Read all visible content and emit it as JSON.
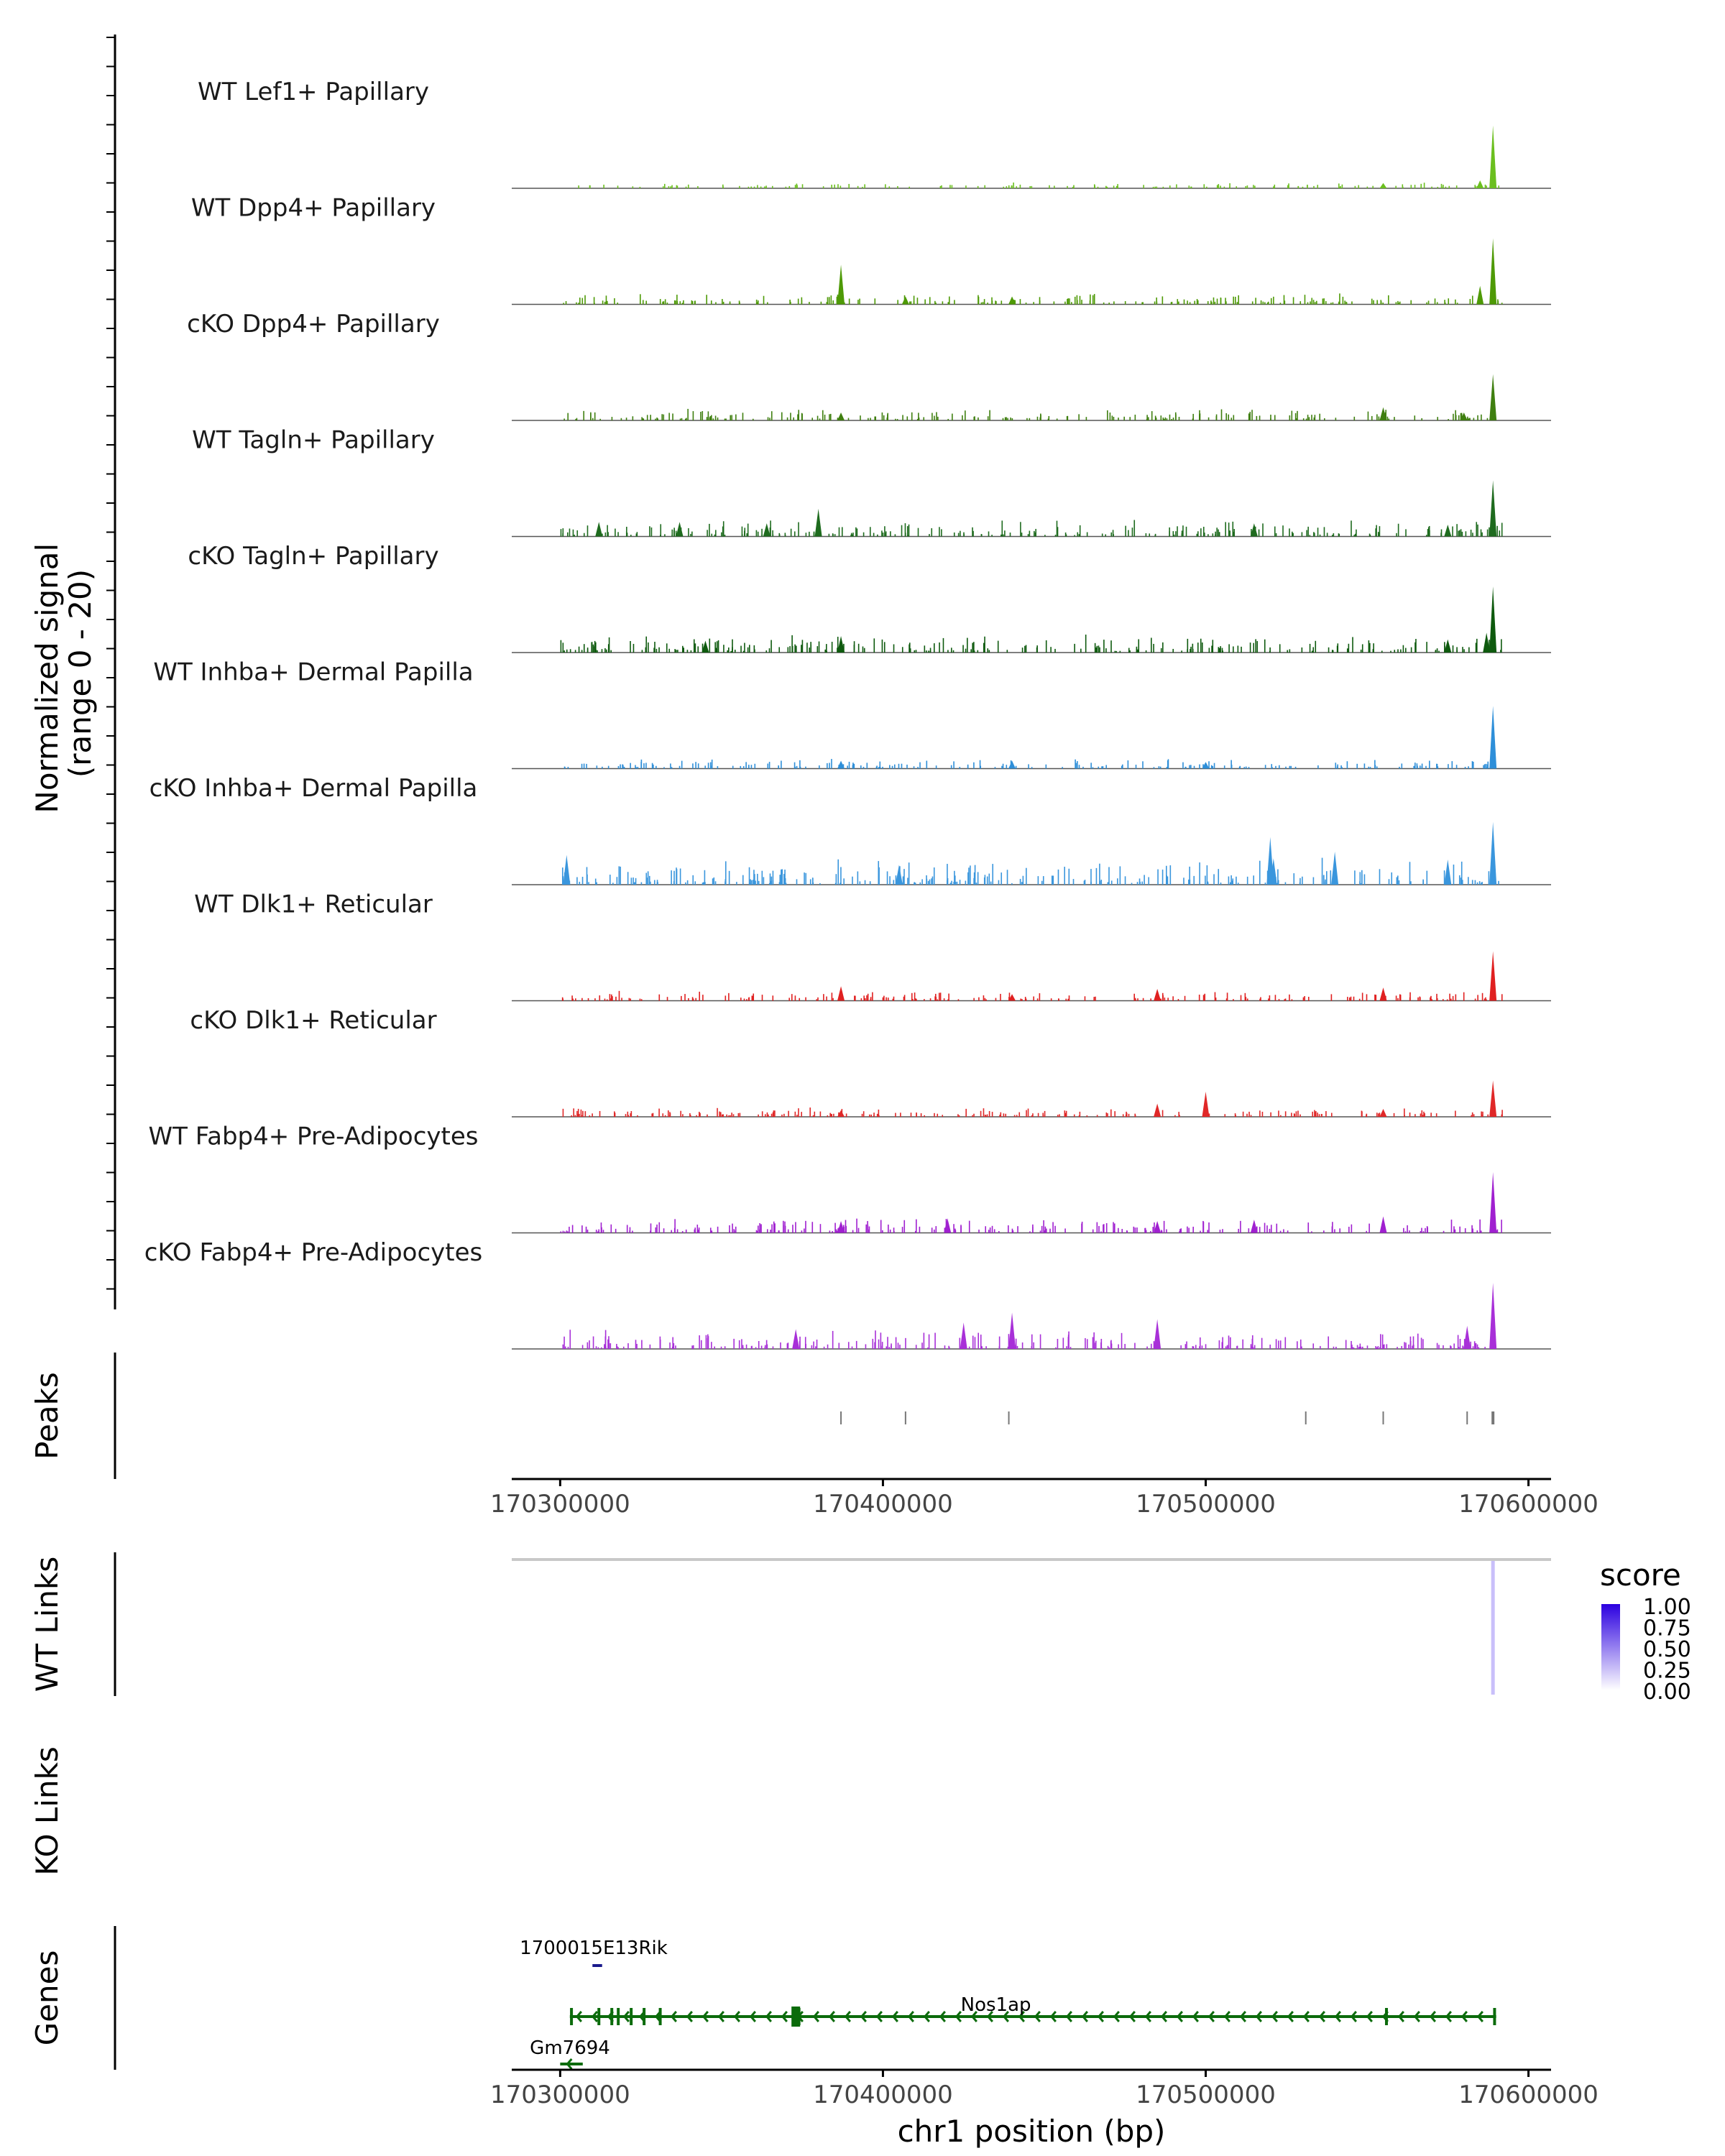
{
  "chart_data": {
    "type": "genome-browser-coverage",
    "region": {
      "chrom": "chr1",
      "start": 170285000,
      "end": 170607000
    },
    "signal_axis_label": "Normalized signal\n(range 0 - 20)",
    "signal_range": [
      0,
      20
    ],
    "tracks": [
      {
        "name": "WT Lef1+ Papillary",
        "color": "#6BBF1F",
        "noise": 0.3,
        "peaks": [
          {
            "pos": 170589000,
            "h": 0.95
          },
          {
            "pos": 170585000,
            "h": 0.12
          },
          {
            "pos": 170555000,
            "h": 0.08
          }
        ]
      },
      {
        "name": "WT Dpp4+ Papillary",
        "color": "#4E9A06",
        "noise": 0.6,
        "peaks": [
          {
            "pos": 170589000,
            "h": 1.0
          },
          {
            "pos": 170387000,
            "h": 0.6
          },
          {
            "pos": 170585000,
            "h": 0.28
          },
          {
            "pos": 170407000,
            "h": 0.12
          },
          {
            "pos": 170440000,
            "h": 0.12
          }
        ]
      },
      {
        "name": "cKO Dpp4+ Papillary",
        "color": "#3F7F10",
        "noise": 0.6,
        "peaks": [
          {
            "pos": 170589000,
            "h": 0.7
          },
          {
            "pos": 170555000,
            "h": 0.2
          },
          {
            "pos": 170580000,
            "h": 0.12
          },
          {
            "pos": 170387000,
            "h": 0.12
          }
        ]
      },
      {
        "name": "WT Tagln+ Papillary",
        "color": "#1E6B1E",
        "noise": 0.9,
        "peaks": [
          {
            "pos": 170589000,
            "h": 0.85
          },
          {
            "pos": 170380000,
            "h": 0.42
          },
          {
            "pos": 170312000,
            "h": 0.22
          },
          {
            "pos": 170337000,
            "h": 0.22
          },
          {
            "pos": 170364000,
            "h": 0.2
          },
          {
            "pos": 170515000,
            "h": 0.2
          },
          {
            "pos": 170575000,
            "h": 0.18
          }
        ]
      },
      {
        "name": "cKO Tagln+ Papillary",
        "color": "#0E5A0E",
        "noise": 1.0,
        "peaks": [
          {
            "pos": 170589000,
            "h": 1.0
          },
          {
            "pos": 170587000,
            "h": 0.3
          },
          {
            "pos": 170387000,
            "h": 0.25
          },
          {
            "pos": 170575000,
            "h": 0.2
          },
          {
            "pos": 170345000,
            "h": 0.18
          }
        ]
      },
      {
        "name": "WT Inhba+ Dermal Papilla",
        "color": "#2E8FD9",
        "noise": 0.5,
        "peaks": [
          {
            "pos": 170589000,
            "h": 0.95
          },
          {
            "pos": 170387000,
            "h": 0.12
          },
          {
            "pos": 170440000,
            "h": 0.12
          },
          {
            "pos": 170500000,
            "h": 0.1
          }
        ]
      },
      {
        "name": "cKO Inhba+ Dermal Papilla",
        "color": "#3A96DD",
        "noise": 1.4,
        "peaks": [
          {
            "pos": 170589000,
            "h": 0.95
          },
          {
            "pos": 170302000,
            "h": 0.45
          },
          {
            "pos": 170540000,
            "h": 0.5
          },
          {
            "pos": 170521000,
            "h": 0.4
          },
          {
            "pos": 170575000,
            "h": 0.38
          },
          {
            "pos": 170520000,
            "h": 0.72
          },
          {
            "pos": 170405000,
            "h": 0.3
          }
        ]
      },
      {
        "name": "WT Dlk1+ Reticular",
        "color": "#E02020",
        "noise": 0.5,
        "peaks": [
          {
            "pos": 170589000,
            "h": 0.75
          },
          {
            "pos": 170387000,
            "h": 0.22
          },
          {
            "pos": 170555000,
            "h": 0.2
          },
          {
            "pos": 170485000,
            "h": 0.18
          },
          {
            "pos": 170440000,
            "h": 0.1
          }
        ]
      },
      {
        "name": "cKO Dlk1+ Reticular",
        "color": "#E02828",
        "noise": 0.5,
        "peaks": [
          {
            "pos": 170589000,
            "h": 0.55
          },
          {
            "pos": 170500000,
            "h": 0.38
          },
          {
            "pos": 170485000,
            "h": 0.2
          },
          {
            "pos": 170555000,
            "h": 0.12
          },
          {
            "pos": 170387000,
            "h": 0.1
          }
        ]
      },
      {
        "name": "WT Fabp4+ Pre-Adipocytes",
        "color": "#A020D0",
        "noise": 0.8,
        "peaks": [
          {
            "pos": 170589000,
            "h": 0.92
          },
          {
            "pos": 170555000,
            "h": 0.25
          },
          {
            "pos": 170420000,
            "h": 0.22
          },
          {
            "pos": 170515000,
            "h": 0.2
          },
          {
            "pos": 170387000,
            "h": 0.18
          },
          {
            "pos": 170485000,
            "h": 0.18
          }
        ]
      },
      {
        "name": "cKO Fabp4+ Pre-Adipocytes",
        "color": "#A830D8",
        "noise": 1.1,
        "peaks": [
          {
            "pos": 170589000,
            "h": 1.0
          },
          {
            "pos": 170440000,
            "h": 0.55
          },
          {
            "pos": 170485000,
            "h": 0.45
          },
          {
            "pos": 170581000,
            "h": 0.35
          },
          {
            "pos": 170425000,
            "h": 0.4
          },
          {
            "pos": 170373000,
            "h": 0.3
          }
        ]
      }
    ],
    "peaks_track": {
      "label": "Peaks",
      "positions": [
        170387000,
        170407000,
        170439000,
        170531000,
        170555000,
        170581000,
        170589000
      ]
    },
    "x_axis": {
      "ticks": [
        170300000,
        170400000,
        170500000,
        170600000
      ],
      "tick_labels": [
        "170300000",
        "170400000",
        "170500000",
        "170600000"
      ],
      "title": "chr1 position (bp)"
    },
    "wt_links": {
      "label": "WT Links",
      "links": [
        {
          "pos": 170589000,
          "score": 0.25
        }
      ]
    },
    "ko_links": {
      "label": "KO Links",
      "links": []
    },
    "legend": {
      "title": "score",
      "entries": [
        "1.00",
        "0.75",
        "0.50",
        "0.25",
        "0.00"
      ],
      "low_color": "#FFFFFF",
      "high_color": "#2B00E0"
    },
    "genes": {
      "label": "Genes",
      "items": [
        {
          "name": "1700015E13Rik",
          "start": 170310000,
          "end": 170313000,
          "strand": "+",
          "color": "#1A1A8C",
          "row": 0
        },
        {
          "name": "Nos1ap",
          "start": 170303000,
          "end": 170590000,
          "strand": "-",
          "color": "#0B6B0B",
          "row": 1
        },
        {
          "name": "Gm7694",
          "start": 170300000,
          "end": 170307000,
          "strand": "-",
          "color": "#0B6B0B",
          "row": 2
        }
      ]
    }
  }
}
